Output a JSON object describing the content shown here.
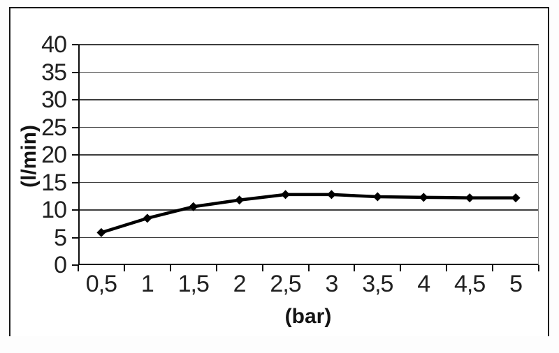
{
  "figure": {
    "title": "",
    "background_color": "#ffffff",
    "border_color": "#171717"
  },
  "chart_data": {
    "type": "line",
    "categories": [
      "0,5",
      "1",
      "1,5",
      "2",
      "2,5",
      "3",
      "3,5",
      "4",
      "4,5",
      "5"
    ],
    "x_numeric": [
      0.5,
      1,
      1.5,
      2,
      2.5,
      3,
      3.5,
      4,
      4.5,
      5
    ],
    "values": [
      5.9,
      8.5,
      10.6,
      11.8,
      12.8,
      12.8,
      12.4,
      12.3,
      12.2,
      12.2
    ],
    "title": "",
    "xlabel": "(bar)",
    "ylabel": "(l/min)",
    "ylim": [
      0,
      40
    ],
    "ytick_step": 5,
    "ytick_labels": [
      "0",
      "5",
      "10",
      "15",
      "20",
      "25",
      "30",
      "35",
      "40"
    ],
    "grid": "horizontal",
    "legend": "none",
    "line_color": "#000000",
    "marker": "diamond",
    "marker_color": "#000000",
    "gridline_color": "#3d3d3d",
    "axis_color": "#0d0d0d",
    "decimal_separator": ","
  }
}
